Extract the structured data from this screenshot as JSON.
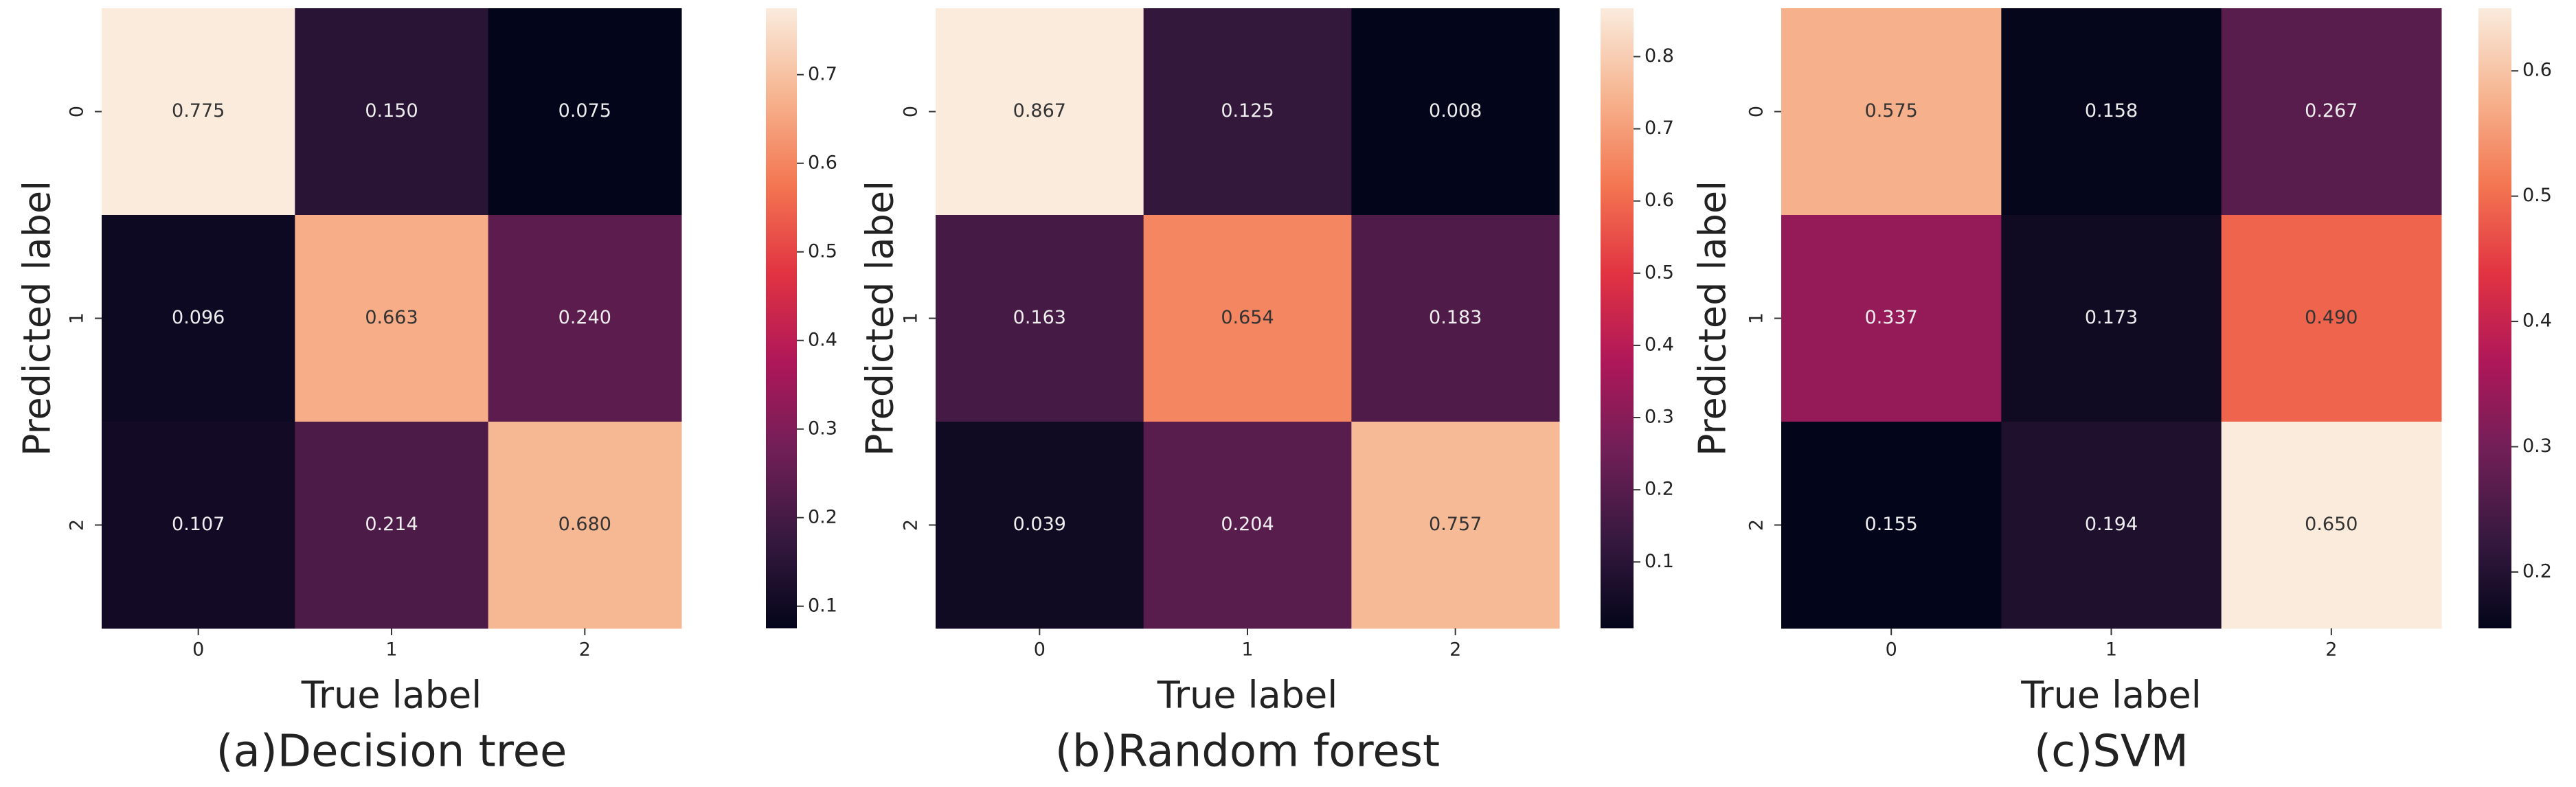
{
  "chart_data": [
    {
      "type": "heatmap",
      "caption": "(a)Decision tree",
      "xlabel": "True label",
      "ylabel": "Predicted label",
      "x": [
        "0",
        "1",
        "2"
      ],
      "y": [
        "0",
        "1",
        "2"
      ],
      "values": [
        [
          0.775,
          0.15,
          0.075
        ],
        [
          0.096,
          0.663,
          0.24
        ],
        [
          0.107,
          0.214,
          0.68
        ]
      ],
      "value_labels": [
        [
          "0.775",
          "0.150",
          "0.075"
        ],
        [
          "0.096",
          "0.663",
          "0.240"
        ],
        [
          "0.107",
          "0.214",
          "0.680"
        ]
      ],
      "clim": [
        0.075,
        0.775
      ],
      "cticks": [
        0.1,
        0.2,
        0.3,
        0.4,
        0.5,
        0.6,
        0.7
      ],
      "cmap": [
        "#03051a",
        "#36193e",
        "#701f57",
        "#ae1759",
        "#e13342",
        "#f37651",
        "#f6b48f",
        "#faebdd"
      ]
    },
    {
      "type": "heatmap",
      "caption": "(b)Random forest",
      "xlabel": "True label",
      "ylabel": "Predicted label",
      "x": [
        "0",
        "1",
        "2"
      ],
      "y": [
        "0",
        "1",
        "2"
      ],
      "values": [
        [
          0.867,
          0.125,
          0.008
        ],
        [
          0.163,
          0.654,
          0.183
        ],
        [
          0.039,
          0.204,
          0.757
        ]
      ],
      "value_labels": [
        [
          "0.867",
          "0.125",
          "0.008"
        ],
        [
          "0.163",
          "0.654",
          "0.183"
        ],
        [
          "0.039",
          "0.204",
          "0.757"
        ]
      ],
      "clim": [
        0.008,
        0.867
      ],
      "cticks": [
        0.1,
        0.2,
        0.3,
        0.4,
        0.5,
        0.6,
        0.7,
        0.8
      ],
      "cmap": [
        "#03051a",
        "#36193e",
        "#701f57",
        "#ae1759",
        "#e13342",
        "#f37651",
        "#f6b48f",
        "#faebdd"
      ]
    },
    {
      "type": "heatmap",
      "caption": "(c)SVM",
      "xlabel": "True label",
      "ylabel": "Predicted label",
      "x": [
        "0",
        "1",
        "2"
      ],
      "y": [
        "0",
        "1",
        "2"
      ],
      "values": [
        [
          0.575,
          0.158,
          0.267
        ],
        [
          0.337,
          0.173,
          0.49
        ],
        [
          0.155,
          0.194,
          0.65
        ]
      ],
      "value_labels": [
        [
          "0.575",
          "0.158",
          "0.267"
        ],
        [
          "0.337",
          "0.173",
          "0.490"
        ],
        [
          "0.155",
          "0.194",
          "0.650"
        ]
      ],
      "clim": [
        0.155,
        0.65
      ],
      "cticks": [
        0.2,
        0.3,
        0.4,
        0.5,
        0.6
      ],
      "cmap": [
        "#03051a",
        "#36193e",
        "#701f57",
        "#ae1759",
        "#e13342",
        "#f37651",
        "#f6b48f",
        "#faebdd"
      ]
    }
  ]
}
